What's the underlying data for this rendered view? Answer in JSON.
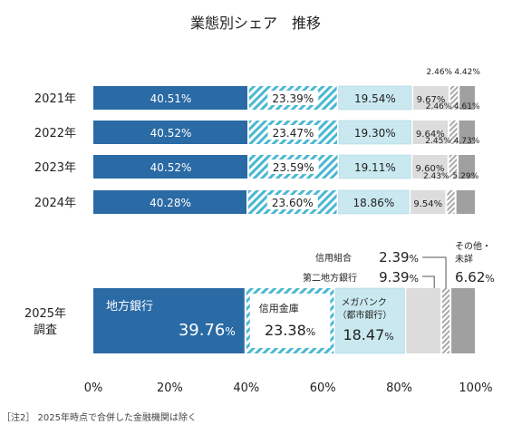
{
  "chart_data": {
    "type": "bar",
    "orientation": "horizontal-stacked-100",
    "title": "業態別シェア　推移",
    "categories": [
      "2021年",
      "2022年",
      "2023年",
      "2024年",
      "2025年調査"
    ],
    "category_label_lines": [
      [
        "2021年"
      ],
      [
        "2022年"
      ],
      [
        "2023年"
      ],
      [
        "2024年"
      ],
      [
        "2025年",
        "調査"
      ]
    ],
    "series": [
      {
        "name": "地方銀行",
        "values": [
          40.51,
          40.52,
          40.52,
          40.28,
          39.76
        ],
        "color": "#2a6aa5",
        "pattern": "solid"
      },
      {
        "name": "信用金庫",
        "values": [
          23.39,
          23.47,
          23.59,
          23.6,
          23.38
        ],
        "color": "#4ab8d2",
        "pattern": "hatch"
      },
      {
        "name": "メガバンク（都市銀行）",
        "values": [
          19.54,
          19.3,
          19.11,
          18.86,
          18.47
        ],
        "color": "#c9e8ef",
        "pattern": "solid"
      },
      {
        "name": "第二地方銀行",
        "values": [
          9.67,
          9.64,
          9.6,
          9.54,
          9.39
        ],
        "color": "#dcdcdc",
        "pattern": "solid"
      },
      {
        "name": "信用組合",
        "values": [
          2.46,
          2.46,
          2.45,
          2.43,
          2.39
        ],
        "color": "#a8a8a8",
        "pattern": "hatch"
      },
      {
        "name": "その他・未詳",
        "values": [
          4.42,
          4.61,
          4.73,
          5.29,
          6.62
        ],
        "color": "#a0a0a0",
        "pattern": "solid"
      }
    ],
    "value_labels": [
      [
        "40.51%",
        "23.39%",
        "19.54%",
        "9.67%",
        "2.46%",
        "4.42%"
      ],
      [
        "40.52%",
        "23.47%",
        "19.30%",
        "9.64%",
        "2.46%",
        "4.61%"
      ],
      [
        "40.52%",
        "23.59%",
        "19.11%",
        "9.60%",
        "2.45%",
        "4.73%"
      ],
      [
        "40.28%",
        "23.60%",
        "18.86%",
        "9.54%",
        "2.43%",
        "5.29%"
      ]
    ],
    "highlight_labels": {
      "chiho": {
        "name": "地方銀行",
        "value": "39.76",
        "unit": "%"
      },
      "shinkin": {
        "name": "信用金庫",
        "value": "23.38",
        "unit": "%"
      },
      "mega": {
        "name_lines": [
          "メガバンク",
          "（都市銀行）"
        ],
        "value": "18.47",
        "unit": "%"
      },
      "shinkumi": {
        "name": "信用組合",
        "value": "2.39",
        "unit": "%"
      },
      "daini": {
        "name": "第二地方銀行",
        "value": "9.39",
        "unit": "%"
      },
      "other": {
        "name_lines": [
          "その他・",
          "未詳"
        ],
        "value": "6.62",
        "unit": "%"
      }
    },
    "xlim": [
      0,
      100
    ],
    "x_ticks": [
      0,
      20,
      40,
      60,
      80,
      100
    ],
    "x_tick_labels": [
      "0%",
      "20%",
      "40%",
      "60%",
      "80%",
      "100%"
    ],
    "grid": false,
    "legend": "none"
  },
  "footnote": "［注2］ 2025年時点で合併した金融機関は除く"
}
